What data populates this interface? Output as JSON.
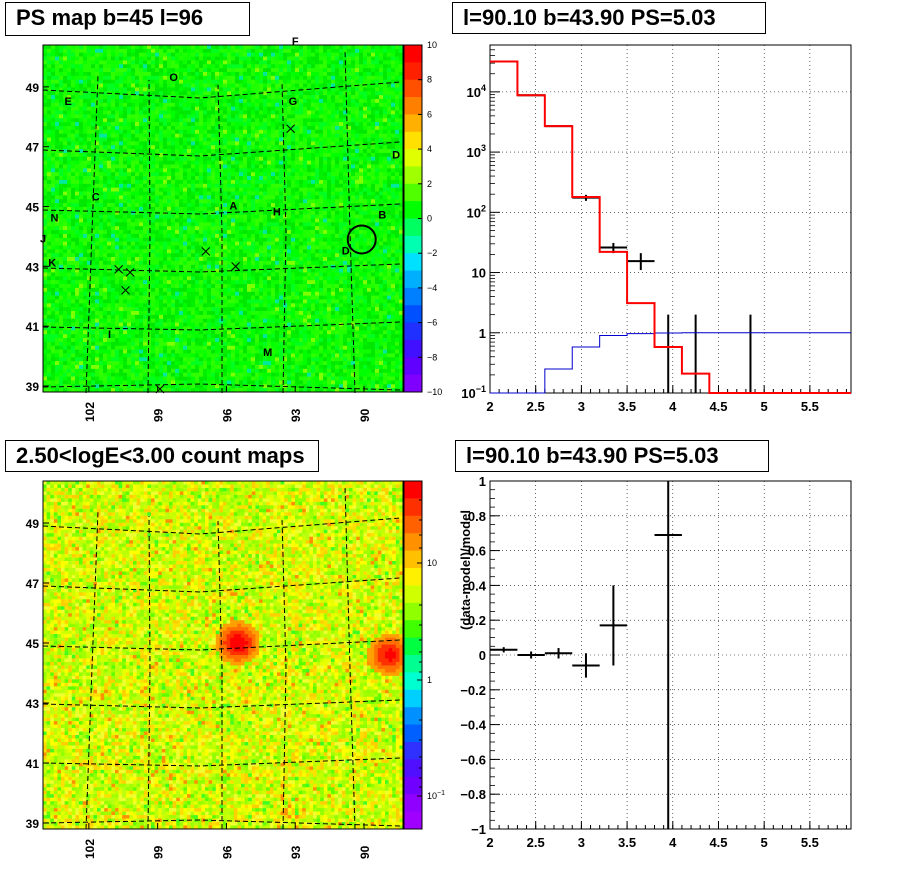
{
  "panels": {
    "top_left_title": "PS map b=45 l=96",
    "top_right_title": "l=90.10 b=43.90 PS=5.03",
    "bottom_left_title": "2.50<logE<3.00 count maps",
    "bottom_right_title": "l=90.10 b=43.90 PS=5.03"
  },
  "colors": {
    "model_total": "#ff0000",
    "model_background": "#0000cc",
    "data": "#000000",
    "grid": "#000000"
  },
  "chart_data": [
    {
      "id": "ps_map",
      "type": "heatmap",
      "title": "PS map b=45 l=96",
      "x_ticks": [
        "102",
        "99",
        "96",
        "93",
        "90"
      ],
      "y_ticks": [
        "39",
        "41",
        "43",
        "45",
        "47",
        "49"
      ],
      "xlim": [
        104,
        88.3
      ],
      "ylim": [
        38.8,
        50.4
      ],
      "colorbar": {
        "min": -10,
        "max": 10,
        "ticks": [
          "10",
          "8",
          "6",
          "4",
          "2",
          "0",
          "−2",
          "−4",
          "−6",
          "−8",
          "−10"
        ]
      },
      "source_labels": [
        {
          "t": "F",
          "l": 93.0,
          "b": 50.4
        },
        {
          "t": "O",
          "l": 98.3,
          "b": 49.2
        },
        {
          "t": "E",
          "l": 102.9,
          "b": 48.4
        },
        {
          "t": "G",
          "l": 93.1,
          "b": 48.4
        },
        {
          "t": "D",
          "l": 88.6,
          "b": 46.6
        },
        {
          "t": "C",
          "l": 101.7,
          "b": 45.2
        },
        {
          "t": "A",
          "l": 95.7,
          "b": 44.9
        },
        {
          "t": "H",
          "l": 93.8,
          "b": 44.7
        },
        {
          "t": "B",
          "l": 89.2,
          "b": 44.6
        },
        {
          "t": "N",
          "l": 103.5,
          "b": 44.5
        },
        {
          "t": "J",
          "l": 104.0,
          "b": 43.8
        },
        {
          "t": "D",
          "l": 90.8,
          "b": 43.4
        },
        {
          "t": "K",
          "l": 103.6,
          "b": 43.0
        },
        {
          "t": "I",
          "l": 101.1,
          "b": 40.6
        },
        {
          "t": "M",
          "l": 94.2,
          "b": 40.0
        }
      ],
      "crosses": [
        {
          "l": 93.2,
          "b": 47.6
        },
        {
          "l": 96.9,
          "b": 43.5
        },
        {
          "l": 95.6,
          "b": 43.0
        },
        {
          "l": 100.7,
          "b": 42.9
        },
        {
          "l": 100.2,
          "b": 42.8
        },
        {
          "l": 100.4,
          "b": 42.2
        },
        {
          "l": 98.9,
          "b": 38.9
        }
      ],
      "circle": {
        "l": 90.1,
        "b": 43.9
      }
    },
    {
      "id": "spectrum",
      "type": "line",
      "title": "l=90.10 b=43.90 PS=5.03",
      "xlim": [
        2,
        5.95
      ],
      "ylim": [
        0.1,
        60000
      ],
      "y_scale": "log",
      "grid": true,
      "x_ticks": [
        "2",
        "2.5",
        "3",
        "3.5",
        "4",
        "4.5",
        "5",
        "5.5"
      ],
      "y_ticks": [
        {
          "v": 0.1,
          "base": "10",
          "exp": "−1"
        },
        {
          "v": 1,
          "base": "1"
        },
        {
          "v": 10,
          "base": "10"
        },
        {
          "v": 100,
          "base": "10",
          "exp": "2"
        },
        {
          "v": 1000,
          "base": "10",
          "exp": "3"
        },
        {
          "v": 10000,
          "base": "10",
          "exp": "4"
        }
      ],
      "series": [
        {
          "role": "model_total",
          "edges": [
            2,
            2.3,
            2.6,
            2.9,
            3.2,
            3.5,
            3.8,
            4.1,
            4.4,
            4.7,
            5,
            5.95
          ],
          "values": [
            32000,
            8800,
            2700,
            180,
            22,
            3.1,
            0.58,
            0.21,
            0.1,
            0.1,
            0.1
          ]
        },
        {
          "role": "model_background",
          "edges": [
            2,
            2.3,
            2.6,
            2.9,
            3.2,
            3.5,
            3.8,
            4.1,
            4.4,
            4.7,
            5,
            5.95
          ],
          "values": [
            0.1,
            0.1,
            0.25,
            0.58,
            0.9,
            0.97,
            0.99,
            1.0,
            1.0,
            1.0,
            1.0
          ]
        },
        {
          "role": "data",
          "points": [
            {
              "x": 2.15,
              "y": 32000,
              "xerr": 0.15
            },
            {
              "x": 2.45,
              "y": 8800,
              "xerr": 0.15
            },
            {
              "x": 2.75,
              "y": 2700,
              "xerr": 0.15
            },
            {
              "x": 3.05,
              "y": 175,
              "xerr": 0.15,
              "lo": 155,
              "hi": 195
            },
            {
              "x": 3.35,
              "y": 26,
              "xerr": 0.15,
              "lo": 21,
              "hi": 31
            },
            {
              "x": 3.65,
              "y": 15.5,
              "xerr": 0.15,
              "lo": 11,
              "hi": 21
            },
            {
              "x": 3.95,
              "lo": 0.1,
              "hi": 2.0
            },
            {
              "x": 4.25,
              "lo": 0.1,
              "hi": 2.0
            },
            {
              "x": 4.85,
              "lo": 0.1,
              "hi": 2.0
            }
          ]
        }
      ]
    },
    {
      "id": "count_map",
      "type": "heatmap",
      "title": "2.50<logE<3.00 count maps",
      "x_ticks": [
        "102",
        "99",
        "96",
        "93",
        "90"
      ],
      "y_ticks": [
        "39",
        "41",
        "43",
        "45",
        "47",
        "49"
      ],
      "xlim": [
        104,
        88.3
      ],
      "ylim": [
        38.8,
        50.4
      ],
      "colorbar": {
        "scale": "log",
        "ticks": [
          {
            "base": "10",
            "v": 10
          },
          {
            "base": "1",
            "v": 1
          },
          {
            "base": "10",
            "exp": "−1",
            "v": 0.1
          }
        ]
      },
      "hot_spots": [
        {
          "label": "A",
          "l": 95.5,
          "b": 45.0,
          "strength": 1.0
        },
        {
          "label": "B",
          "l": 88.9,
          "b": 44.6,
          "strength": 0.85
        }
      ]
    },
    {
      "id": "residual",
      "type": "scatter",
      "title": "l=90.10 b=43.90 PS=5.03",
      "ylabel": "(data-model)/model",
      "xlim": [
        2,
        5.95
      ],
      "ylim": [
        -1,
        1
      ],
      "grid": true,
      "x_ticks": [
        "2",
        "2.5",
        "3",
        "3.5",
        "4",
        "4.5",
        "5",
        "5.5"
      ],
      "y_ticks": [
        "1",
        "0.8",
        "0.6",
        "0.4",
        "0.2",
        "0",
        "−0.2",
        "−0.4",
        "−0.6",
        "−0.8",
        "−1"
      ],
      "points": [
        {
          "x": 2.15,
          "y": 0.03,
          "xerr": 0.15,
          "err": 0.015
        },
        {
          "x": 2.45,
          "y": 0.0,
          "xerr": 0.15,
          "err": 0.02
        },
        {
          "x": 2.75,
          "y": 0.01,
          "xerr": 0.15,
          "err": 0.03
        },
        {
          "x": 3.05,
          "y": -0.06,
          "xerr": 0.15,
          "err": 0.07
        },
        {
          "x": 3.35,
          "y": 0.17,
          "xerr": 0.15,
          "err": 0.23
        },
        {
          "x": 3.95,
          "y": 0.69,
          "xerr": 0.15,
          "err": 2.0
        }
      ]
    }
  ]
}
